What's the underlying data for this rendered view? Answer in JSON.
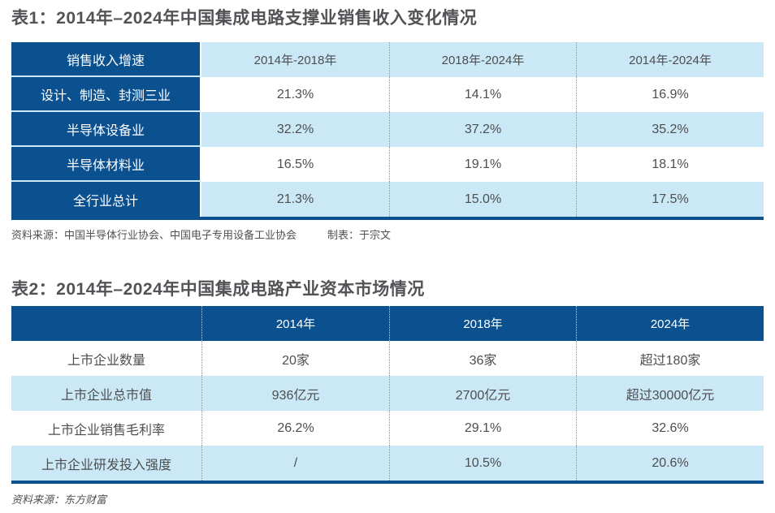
{
  "colors": {
    "header_dark_blue": "#0b5190",
    "row_light_blue": "#cae8f6",
    "bottom_border_blue": "#0b5190",
    "title_text": "#525356",
    "cell_text": "#4d4e50"
  },
  "chart_data": [
    {
      "type": "table",
      "title": "表1：2014年–2024年中国集成电路支撑业销售收入变化情况",
      "columns": [
        "销售收入增速",
        "2014年-2018年",
        "2018年-2024年",
        "2014年-2024年"
      ],
      "rows": [
        [
          "设计、制造、封测三业",
          "21.3%",
          "14.1%",
          "16.9%"
        ],
        [
          "半导体设备业",
          "32.2%",
          "37.2%",
          "35.2%"
        ],
        [
          "半导体材料业",
          "16.5%",
          "19.1%",
          "18.1%"
        ],
        [
          "全行业总计",
          "21.3%",
          "15.0%",
          "17.5%"
        ]
      ],
      "source": "资料来源：中国半导体行业协会、中国电子专用设备工业协会",
      "credit": "制表：于宗文"
    },
    {
      "type": "table",
      "title": "表2：2014年–2024年中国集成电路产业资本市场情况",
      "columns": [
        "",
        "2014年",
        "2018年",
        "2024年"
      ],
      "rows": [
        [
          "上市企业数量",
          "20家",
          "36家",
          "超过180家"
        ],
        [
          "上市企业总市值",
          "936亿元",
          "2700亿元",
          "超过30000亿元"
        ],
        [
          "上市企业销售毛利率",
          "26.2%",
          "29.1%",
          "32.6%"
        ],
        [
          "上市企业研发投入强度",
          "/",
          "10.5%",
          "20.6%"
        ]
      ],
      "source": "资料来源：东方财富"
    }
  ]
}
